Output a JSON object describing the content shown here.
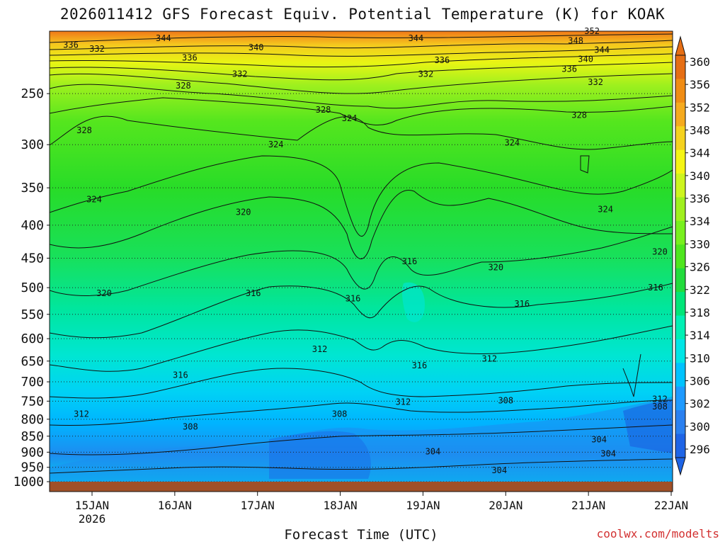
{
  "title": "2026011412 GFS Forecast Equiv. Potential Temperature (K) for KOAK",
  "xlabel": "Forecast Time (UTC)",
  "watermark": "coolwx.com/modelts",
  "chart_data": {
    "type": "heatmap",
    "title": "2026011412 GFS Forecast Equiv. Potential Temperature (K) for KOAK",
    "xlabel": "Forecast Time (UTC)",
    "ylabel": "",
    "x_ticks": [
      "15JAN",
      "16JAN",
      "17JAN",
      "18JAN",
      "19JAN",
      "20JAN",
      "21JAN",
      "22JAN"
    ],
    "x_tick_sublabels": {
      "15JAN": "2026"
    },
    "y_ticks": [
      250,
      300,
      350,
      400,
      450,
      500,
      550,
      600,
      650,
      700,
      750,
      800,
      850,
      900,
      950,
      1000
    ],
    "ylim": [
      1000,
      200
    ],
    "y_scale": "log-pressure",
    "grid": "dotted horizontal at pressure levels",
    "colorbar": {
      "levels": [
        296,
        300,
        302,
        306,
        310,
        314,
        318,
        322,
        326,
        330,
        334,
        336,
        340,
        344,
        348,
        352,
        356,
        360
      ],
      "labels": [
        "360",
        "356",
        "352",
        "348",
        "344",
        "340",
        "336",
        "334",
        "330",
        "326",
        "322",
        "318",
        "314",
        "310",
        "306",
        "302",
        "300",
        "296"
      ],
      "colors": [
        "#1e64e6",
        "#2a80f0",
        "#1e9aff",
        "#00c3ff",
        "#00e6e6",
        "#00f0b4",
        "#00e678",
        "#22dc3c",
        "#4ee61e",
        "#78f01e",
        "#a0f01e",
        "#cdf51e",
        "#f5f514",
        "#f5d21e",
        "#f5aa1e",
        "#f08c14",
        "#e66e14"
      ],
      "extend": "both"
    },
    "contour_labels": [
      {
        "x": "15JAN",
        "p": 210,
        "label": "336"
      },
      {
        "x": "15JAN",
        "p": 213,
        "label": "332"
      },
      {
        "x": "16JAN",
        "p": 205,
        "label": "344"
      },
      {
        "x": "16JAN",
        "p": 220,
        "label": "336"
      },
      {
        "x": "17JAN",
        "p": 212,
        "label": "340"
      },
      {
        "x": "17JAN",
        "p": 233,
        "label": "332"
      },
      {
        "x": "16JAN",
        "p": 243,
        "label": "328"
      },
      {
        "x": "15JAN",
        "p": 285,
        "label": "328"
      },
      {
        "x": "17JAN",
        "p": 300,
        "label": "324"
      },
      {
        "x": "15JAN",
        "p": 365,
        "label": "324"
      },
      {
        "x": "17JAN",
        "p": 382,
        "label": "320"
      },
      {
        "x": "15JAN",
        "p": 510,
        "label": "320"
      },
      {
        "x": "17JAN",
        "p": 510,
        "label": "316"
      },
      {
        "x": "18JAN",
        "p": 623,
        "label": "312"
      },
      {
        "x": "16JAN",
        "p": 683,
        "label": "316"
      },
      {
        "x": "15JAN",
        "p": 785,
        "label": "312"
      },
      {
        "x": "16JAN",
        "p": 822,
        "label": "308"
      },
      {
        "x": "18JAN",
        "p": 785,
        "label": "308"
      },
      {
        "x": "18JAN",
        "p": 265,
        "label": "328"
      },
      {
        "x": "18JAN",
        "p": 273,
        "label": "324"
      },
      {
        "x": "19JAN",
        "p": 205,
        "label": "344"
      },
      {
        "x": "19JAN",
        "p": 222,
        "label": "336"
      },
      {
        "x": "19JAN",
        "p": 233,
        "label": "332"
      },
      {
        "x": "19JAN",
        "p": 455,
        "label": "316"
      },
      {
        "x": "18JAN",
        "p": 520,
        "label": "316"
      },
      {
        "x": "19JAN",
        "p": 660,
        "label": "316"
      },
      {
        "x": "19JAN",
        "p": 752,
        "label": "312"
      },
      {
        "x": "20JAN",
        "p": 298,
        "label": "324"
      },
      {
        "x": "20JAN",
        "p": 465,
        "label": "320"
      },
      {
        "x": "20JAN",
        "p": 530,
        "label": "316"
      },
      {
        "x": "20JAN",
        "p": 748,
        "label": "308"
      },
      {
        "x": "20JAN",
        "p": 645,
        "label": "312"
      },
      {
        "x": "19JAN",
        "p": 898,
        "label": "304"
      },
      {
        "x": "20JAN",
        "p": 960,
        "label": "304"
      },
      {
        "x": "21JAN",
        "p": 905,
        "label": "304"
      },
      {
        "x": "21JAN",
        "p": 200,
        "label": "352"
      },
      {
        "x": "21JAN",
        "p": 207,
        "label": "348"
      },
      {
        "x": "21JAN",
        "p": 214,
        "label": "344"
      },
      {
        "x": "21JAN",
        "p": 221,
        "label": "340"
      },
      {
        "x": "21JAN",
        "p": 229,
        "label": "336"
      },
      {
        "x": "21JAN",
        "p": 240,
        "label": "332"
      },
      {
        "x": "21JAN",
        "p": 270,
        "label": "328"
      },
      {
        "x": "21JAN",
        "p": 378,
        "label": "324"
      },
      {
        "x": "22JAN",
        "p": 440,
        "label": "320"
      },
      {
        "x": "22JAN",
        "p": 500,
        "label": "316"
      },
      {
        "x": "21JAN",
        "p": 860,
        "label": "304"
      },
      {
        "x": "22JAN",
        "p": 745,
        "label": "312"
      },
      {
        "x": "22JAN",
        "p": 765,
        "label": "308"
      }
    ]
  }
}
